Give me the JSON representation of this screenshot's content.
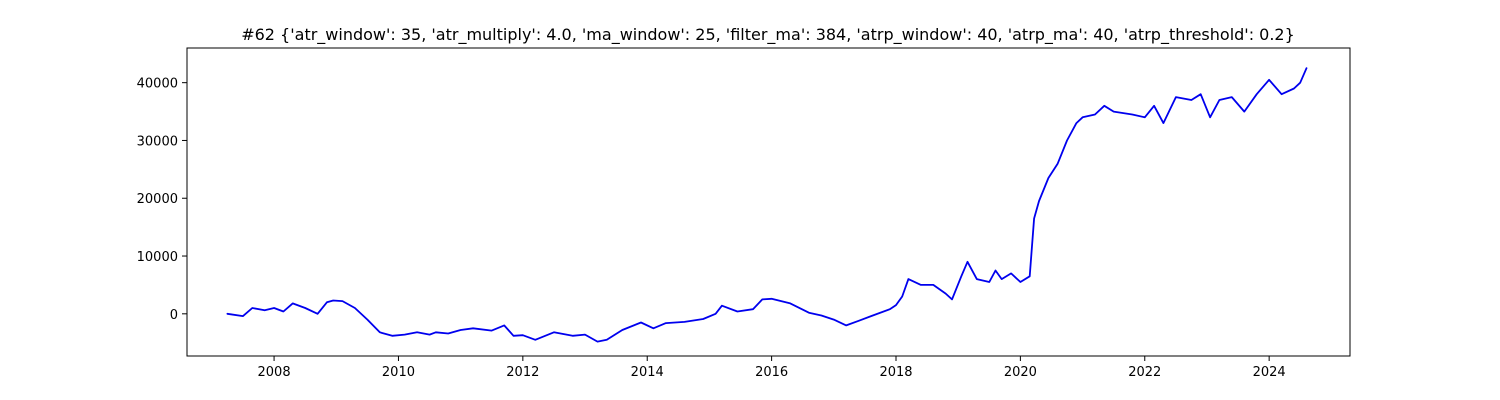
{
  "chart_data": {
    "type": "line",
    "title": "#62 {'atr_window': 35, 'atr_multiply': 4.0, 'ma_window': 25, 'filter_ma': 384, 'atrp_window': 40, 'atrp_ma': 40, 'atrp_threshold': 0.2}",
    "xlabel": "",
    "ylabel": "",
    "xlim": [
      2006.6,
      2025.3
    ],
    "ylim": [
      -7300,
      46000
    ],
    "x_ticks": [
      2008,
      2010,
      2012,
      2014,
      2016,
      2018,
      2020,
      2022,
      2024
    ],
    "x_tick_labels": [
      "2008",
      "2010",
      "2012",
      "2014",
      "2016",
      "2018",
      "2020",
      "2022",
      "2024"
    ],
    "y_ticks": [
      0,
      10000,
      20000,
      30000,
      40000
    ],
    "y_tick_labels": [
      "0",
      "10000",
      "20000",
      "30000",
      "40000"
    ],
    "grid": false,
    "legend": "none",
    "line_color": "#0000ee",
    "series": [
      {
        "x": [
          2007.25,
          2007.5,
          2007.65,
          2007.85,
          2008.0,
          2008.15,
          2008.3,
          2008.5,
          2008.7,
          2008.85,
          2008.95,
          2009.1,
          2009.3,
          2009.5,
          2009.7,
          2009.9,
          2010.1,
          2010.3,
          2010.5,
          2010.6,
          2010.8,
          2011.0,
          2011.2,
          2011.5,
          2011.7,
          2011.85,
          2012.0,
          2012.2,
          2012.5,
          2012.8,
          2013.0,
          2013.2,
          2013.35,
          2013.6,
          2013.9,
          2014.1,
          2014.3,
          2014.6,
          2014.9,
          2015.1,
          2015.2,
          2015.45,
          2015.7,
          2015.85,
          2016.0,
          2016.3,
          2016.6,
          2016.8,
          2017.0,
          2017.2,
          2017.4,
          2017.6,
          2017.9,
          2018.0,
          2018.1,
          2018.2,
          2018.4,
          2018.6,
          2018.8,
          2018.9,
          2019.05,
          2019.15,
          2019.3,
          2019.5,
          2019.6,
          2019.7,
          2019.85,
          2020.0,
          2020.15,
          2020.22,
          2020.3,
          2020.45,
          2020.6,
          2020.75,
          2020.9,
          2021.0,
          2021.2,
          2021.35,
          2021.5,
          2021.8,
          2022.0,
          2022.15,
          2022.3,
          2022.5,
          2022.75,
          2022.9,
          2023.05,
          2023.2,
          2023.4,
          2023.6,
          2023.8,
          2024.0,
          2024.2,
          2024.4,
          2024.5,
          2024.6
        ],
        "values": [
          0,
          -400,
          1000,
          600,
          1000,
          400,
          1800,
          1000,
          0,
          2000,
          2300,
          2200,
          1000,
          -1000,
          -3200,
          -3800,
          -3600,
          -3200,
          -3600,
          -3200,
          -3400,
          -2800,
          -2500,
          -2900,
          -2000,
          -3800,
          -3700,
          -4500,
          -3200,
          -3800,
          -3600,
          -4800,
          -4500,
          -2800,
          -1500,
          -2500,
          -1600,
          -1400,
          -900,
          0,
          1400,
          400,
          800,
          2500,
          2600,
          1800,
          200,
          -300,
          -1000,
          -2000,
          -1200,
          -400,
          800,
          1500,
          3000,
          6000,
          5000,
          5000,
          3500,
          2500,
          6500,
          9000,
          6000,
          5500,
          7500,
          6000,
          7000,
          5500,
          6500,
          16500,
          19500,
          23500,
          26000,
          30000,
          33000,
          34000,
          34500,
          36000,
          35000,
          34500,
          34000,
          36000,
          33000,
          37500,
          37000,
          38000,
          34000,
          37000,
          37500,
          35000,
          38000,
          40500,
          38000,
          39000,
          40000,
          42500
        ]
      }
    ]
  }
}
